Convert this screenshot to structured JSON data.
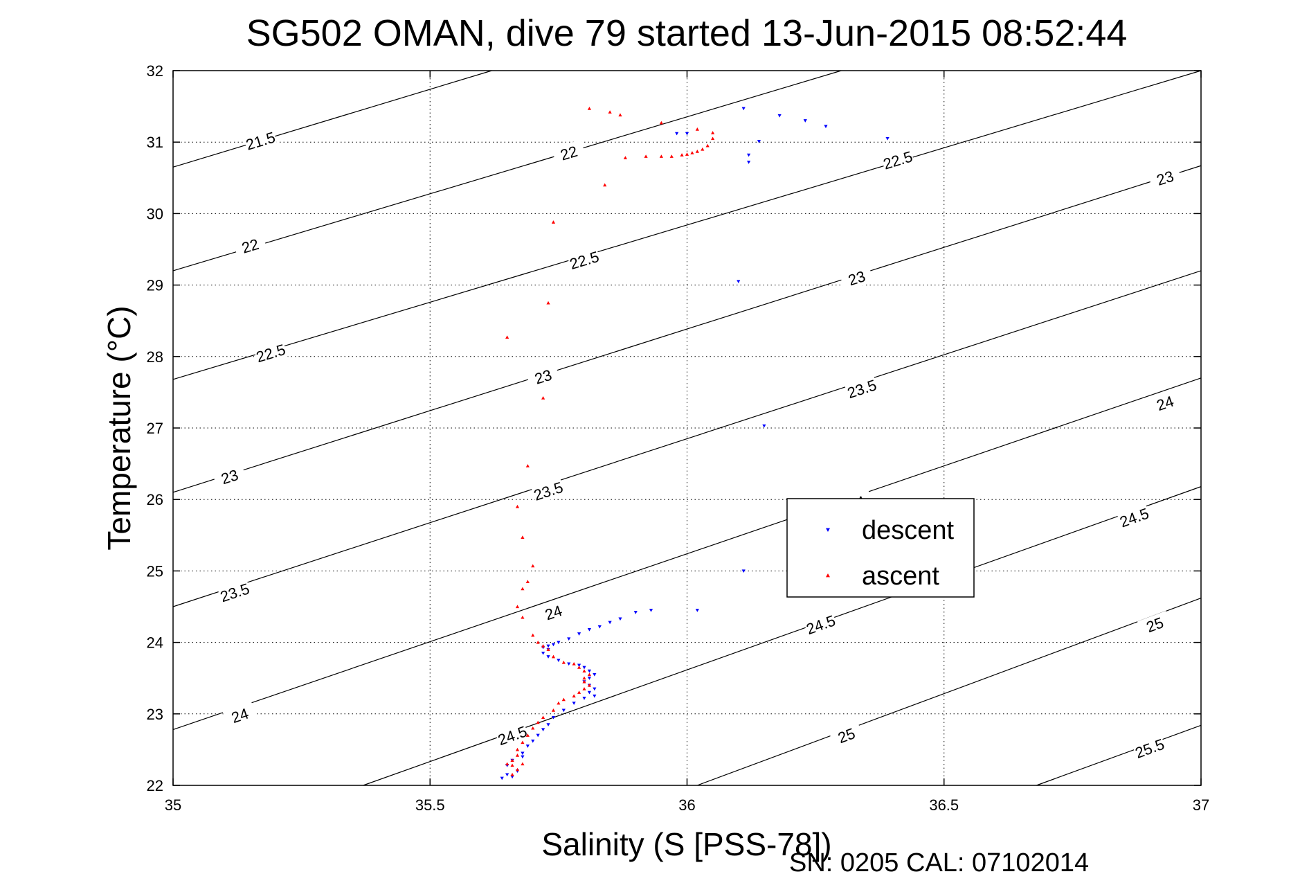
{
  "chart_data": {
    "type": "scatter",
    "title": "SG502 OMAN, dive 79 started 13-Jun-2015 08:52:44",
    "xlabel": "Salinity (S [PSS-78])",
    "ylabel": "Temperature (°C)",
    "xlim": [
      35,
      37
    ],
    "ylim": [
      22,
      32
    ],
    "xticks": [
      "35",
      "35.5",
      "36",
      "36.5",
      "37"
    ],
    "yticks": [
      "22",
      "23",
      "24",
      "25",
      "26",
      "27",
      "28",
      "29",
      "30",
      "31",
      "32"
    ],
    "grid": true,
    "legend": {
      "placement": "center-right"
    },
    "footer": "SN: 0205  CAL: 07102014",
    "contours": [
      {
        "level": "21.5",
        "points": [
          [
            35,
            30.65
          ],
          [
            35.62,
            32.0
          ]
        ],
        "labels": [
          [
            35.17,
            31.02
          ]
        ]
      },
      {
        "level": "22",
        "points": [
          [
            35,
            29.2
          ],
          [
            36.3,
            32.0
          ]
        ],
        "labels": [
          [
            35.15,
            29.55
          ],
          [
            35.77,
            30.85
          ]
        ]
      },
      {
        "level": "22.5",
        "points": [
          [
            35,
            27.68
          ],
          [
            37,
            32.0
          ]
        ],
        "labels": [
          [
            35.19,
            28.05
          ],
          [
            35.8,
            29.35
          ],
          [
            36.41,
            30.75
          ]
        ]
      },
      {
        "level": "23",
        "points": [
          [
            35,
            26.1
          ],
          [
            37,
            30.67
          ]
        ],
        "labels": [
          [
            35.11,
            26.32
          ],
          [
            35.72,
            27.72
          ],
          [
            36.33,
            29.1
          ],
          [
            36.93,
            30.5
          ]
        ]
      },
      {
        "level": "23.5",
        "points": [
          [
            35,
            24.5
          ],
          [
            37,
            29.2
          ]
        ],
        "labels": [
          [
            35.12,
            24.7
          ],
          [
            35.73,
            26.12
          ],
          [
            36.34,
            27.55
          ]
        ]
      },
      {
        "level": "24",
        "points": [
          [
            35,
            22.78
          ],
          [
            37,
            27.7
          ]
        ],
        "labels": [
          [
            35.13,
            22.98
          ],
          [
            35.74,
            24.42
          ],
          [
            36.33,
            25.95
          ],
          [
            36.93,
            27.35
          ]
        ]
      },
      {
        "level": "24.5",
        "points": [
          [
            35.37,
            22.0
          ],
          [
            37,
            26.18
          ]
        ],
        "labels": [
          [
            35.66,
            22.7
          ],
          [
            36.26,
            24.25
          ],
          [
            36.87,
            25.75
          ]
        ]
      },
      {
        "level": "25",
        "points": [
          [
            36.02,
            22.0
          ],
          [
            37,
            24.62
          ]
        ],
        "labels": [
          [
            36.31,
            22.7
          ],
          [
            36.91,
            24.25
          ]
        ]
      },
      {
        "level": "25.5",
        "points": [
          [
            36.68,
            22.0
          ],
          [
            37,
            22.84
          ]
        ],
        "labels": [
          [
            36.9,
            22.52
          ]
        ]
      }
    ],
    "series": [
      {
        "name": "descent",
        "color": "#0000ff",
        "marker": "triangle-down",
        "points": [
          [
            36.11,
            31.47
          ],
          [
            36.18,
            31.37
          ],
          [
            36.23,
            31.3
          ],
          [
            36.27,
            31.22
          ],
          [
            36.39,
            31.05
          ],
          [
            36.14,
            31.01
          ],
          [
            35.98,
            31.12
          ],
          [
            36.0,
            31.12
          ],
          [
            36.12,
            30.82
          ],
          [
            36.12,
            30.72
          ],
          [
            36.1,
            29.05
          ],
          [
            36.15,
            27.03
          ],
          [
            36.11,
            25.0
          ],
          [
            36.02,
            24.45
          ],
          [
            35.93,
            24.45
          ],
          [
            35.9,
            24.42
          ],
          [
            35.87,
            24.33
          ],
          [
            35.85,
            24.28
          ],
          [
            35.83,
            24.22
          ],
          [
            35.81,
            24.18
          ],
          [
            35.79,
            24.12
          ],
          [
            35.77,
            24.05
          ],
          [
            35.75,
            24.0
          ],
          [
            35.74,
            23.97
          ],
          [
            35.73,
            23.95
          ],
          [
            35.72,
            23.93
          ],
          [
            35.73,
            23.9
          ],
          [
            35.72,
            23.85
          ],
          [
            35.73,
            23.8
          ],
          [
            35.75,
            23.75
          ],
          [
            35.77,
            23.7
          ],
          [
            35.79,
            23.68
          ],
          [
            35.8,
            23.65
          ],
          [
            35.81,
            23.6
          ],
          [
            35.82,
            23.55
          ],
          [
            35.81,
            23.5
          ],
          [
            35.8,
            23.45
          ],
          [
            35.81,
            23.4
          ],
          [
            35.82,
            23.35
          ],
          [
            35.81,
            23.3
          ],
          [
            35.82,
            23.25
          ],
          [
            35.8,
            23.22
          ],
          [
            35.78,
            23.15
          ],
          [
            35.76,
            23.05
          ],
          [
            35.74,
            22.95
          ],
          [
            35.73,
            22.85
          ],
          [
            35.72,
            22.78
          ],
          [
            35.71,
            22.7
          ],
          [
            35.7,
            22.62
          ],
          [
            35.69,
            22.55
          ],
          [
            35.68,
            22.45
          ],
          [
            35.68,
            22.4
          ],
          [
            35.66,
            22.35
          ],
          [
            35.65,
            22.28
          ],
          [
            35.67,
            22.2
          ],
          [
            35.65,
            22.15
          ],
          [
            35.66,
            22.12
          ],
          [
            35.64,
            22.1
          ]
        ]
      },
      {
        "name": "ascent",
        "color": "#ff0000",
        "marker": "triangle-up",
        "points": [
          [
            35.81,
            31.47
          ],
          [
            35.85,
            31.42
          ],
          [
            35.87,
            31.38
          ],
          [
            35.95,
            31.27
          ],
          [
            36.02,
            31.18
          ],
          [
            36.05,
            31.13
          ],
          [
            36.05,
            31.05
          ],
          [
            36.04,
            30.95
          ],
          [
            36.03,
            30.9
          ],
          [
            36.02,
            30.87
          ],
          [
            36.01,
            30.85
          ],
          [
            36.0,
            30.83
          ],
          [
            35.99,
            30.82
          ],
          [
            35.97,
            30.8
          ],
          [
            35.95,
            30.8
          ],
          [
            35.92,
            30.8
          ],
          [
            35.88,
            30.78
          ],
          [
            35.84,
            30.4
          ],
          [
            35.74,
            29.88
          ],
          [
            35.73,
            28.75
          ],
          [
            35.65,
            28.27
          ],
          [
            35.72,
            27.42
          ],
          [
            35.69,
            26.47
          ],
          [
            35.67,
            25.9
          ],
          [
            35.68,
            25.47
          ],
          [
            35.7,
            25.07
          ],
          [
            35.69,
            24.85
          ],
          [
            35.68,
            24.75
          ],
          [
            35.67,
            24.5
          ],
          [
            35.68,
            24.35
          ],
          [
            35.7,
            24.1
          ],
          [
            35.71,
            24.0
          ],
          [
            35.72,
            23.95
          ],
          [
            35.73,
            23.9
          ],
          [
            35.74,
            23.8
          ],
          [
            35.76,
            23.72
          ],
          [
            35.78,
            23.7
          ],
          [
            35.79,
            23.65
          ],
          [
            35.8,
            23.6
          ],
          [
            35.81,
            23.55
          ],
          [
            35.8,
            23.5
          ],
          [
            35.8,
            23.45
          ],
          [
            35.81,
            23.4
          ],
          [
            35.8,
            23.35
          ],
          [
            35.79,
            23.3
          ],
          [
            35.78,
            23.25
          ],
          [
            35.76,
            23.2
          ],
          [
            35.75,
            23.15
          ],
          [
            35.74,
            23.05
          ],
          [
            35.72,
            22.95
          ],
          [
            35.71,
            22.88
          ],
          [
            35.7,
            22.8
          ],
          [
            35.69,
            22.7
          ],
          [
            35.68,
            22.6
          ],
          [
            35.67,
            22.5
          ],
          [
            35.67,
            22.42
          ],
          [
            35.66,
            22.35
          ],
          [
            35.66,
            22.28
          ],
          [
            35.65,
            22.3
          ],
          [
            35.68,
            22.3
          ],
          [
            35.67,
            22.22
          ],
          [
            35.66,
            22.15
          ]
        ]
      }
    ]
  }
}
